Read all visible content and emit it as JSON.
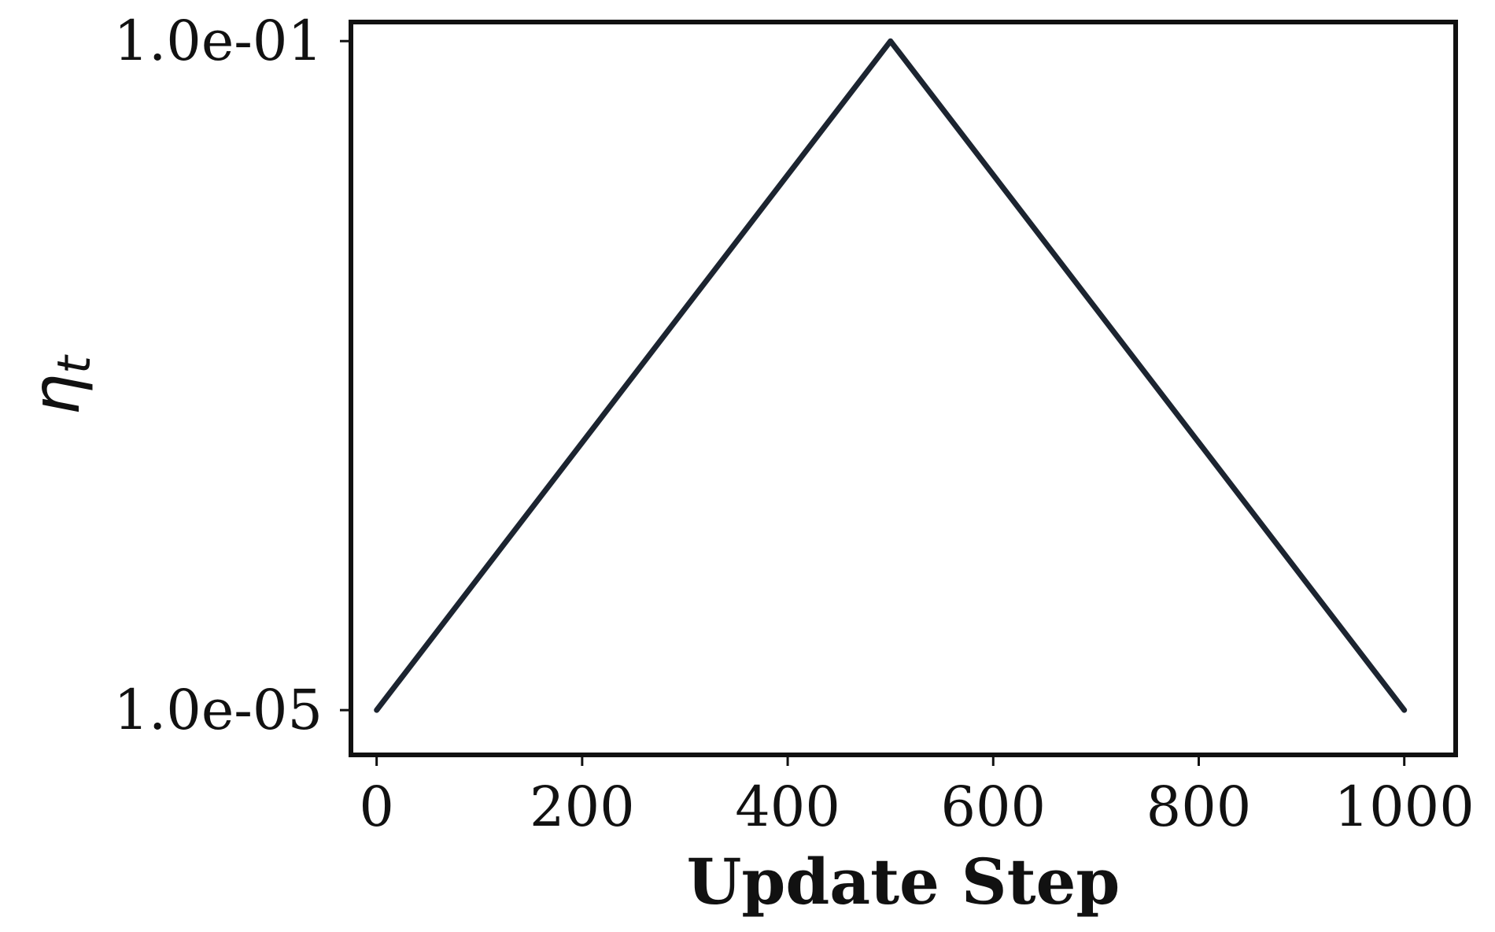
{
  "chart_data": {
    "type": "line",
    "title": "",
    "xlabel": "Update Step",
    "ylabel": "ηt",
    "ylabel_symbol": "η",
    "ylabel_subscript": "t",
    "yscale": "log",
    "xlim": [
      -25,
      1050
    ],
    "ylim": [
      5.4e-06,
      0.13
    ],
    "x_ticks": [
      0,
      200,
      400,
      600,
      800,
      1000
    ],
    "x_tick_labels": [
      "0",
      "200",
      "400",
      "600",
      "800",
      "1000"
    ],
    "y_ticks": [
      0.1,
      1e-05
    ],
    "y_tick_labels": [
      "1.0e-01",
      "1.0e-05"
    ],
    "grid": false,
    "legend": "none",
    "series": [
      {
        "color": "#1c2430",
        "x": [
          0,
          500,
          1000
        ],
        "y": [
          1e-05,
          0.1,
          1e-05
        ]
      }
    ]
  }
}
